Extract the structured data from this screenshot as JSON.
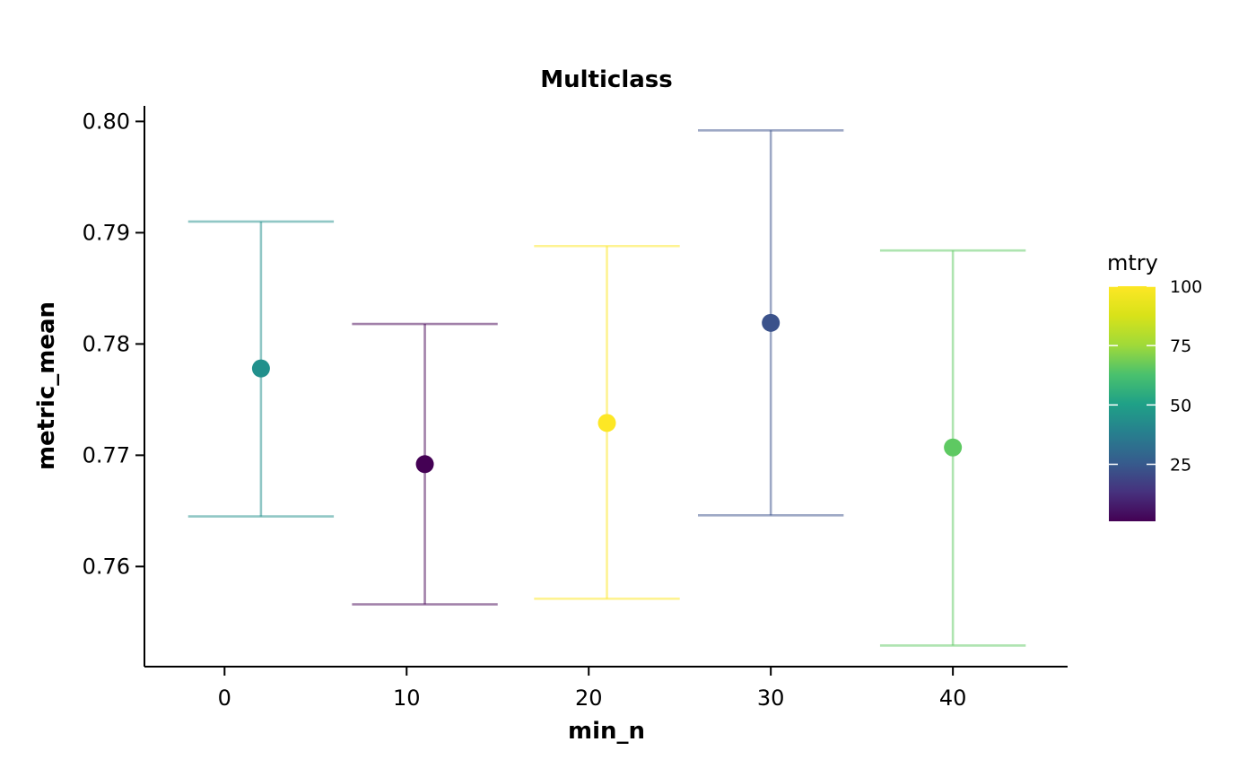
{
  "chart_data": {
    "type": "scatter",
    "title": "Multiclass",
    "xlabel": "min_n",
    "ylabel": "metric_mean",
    "xlim": [
      -4.4,
      46.3
    ],
    "ylim": [
      0.751,
      0.8014
    ],
    "xticks": [
      0,
      10,
      20,
      30,
      40
    ],
    "yticks": [
      0.76,
      0.77,
      0.78,
      0.79,
      0.8
    ],
    "ytick_labels": [
      "0.76",
      "0.77",
      "0.78",
      "0.79",
      "0.80"
    ],
    "error_bar_halfwidth": 4,
    "grid": false,
    "legend": {
      "title": "mtry",
      "type": "colorbar",
      "placement": "right",
      "range": [
        1,
        100
      ],
      "ticks": [
        25,
        50,
        75,
        100
      ],
      "tick_labels": [
        "25",
        "50",
        "75",
        "100"
      ]
    },
    "points": [
      {
        "x": 2,
        "y": 0.7778,
        "ymin": 0.7645,
        "ymax": 0.791,
        "mtry": 45,
        "color": "#21908C"
      },
      {
        "x": 11,
        "y": 0.7692,
        "ymin": 0.7566,
        "ymax": 0.7818,
        "mtry": 1,
        "color": "#440154"
      },
      {
        "x": 21,
        "y": 0.7729,
        "ymin": 0.7571,
        "ymax": 0.7888,
        "mtry": 100,
        "color": "#FDE725"
      },
      {
        "x": 30,
        "y": 0.7819,
        "ymin": 0.7646,
        "ymax": 0.7992,
        "mtry": 20,
        "color": "#3B528B"
      },
      {
        "x": 40,
        "y": 0.7707,
        "ymin": 0.7529,
        "ymax": 0.7884,
        "mtry": 80,
        "color": "#5EC962"
      }
    ]
  }
}
